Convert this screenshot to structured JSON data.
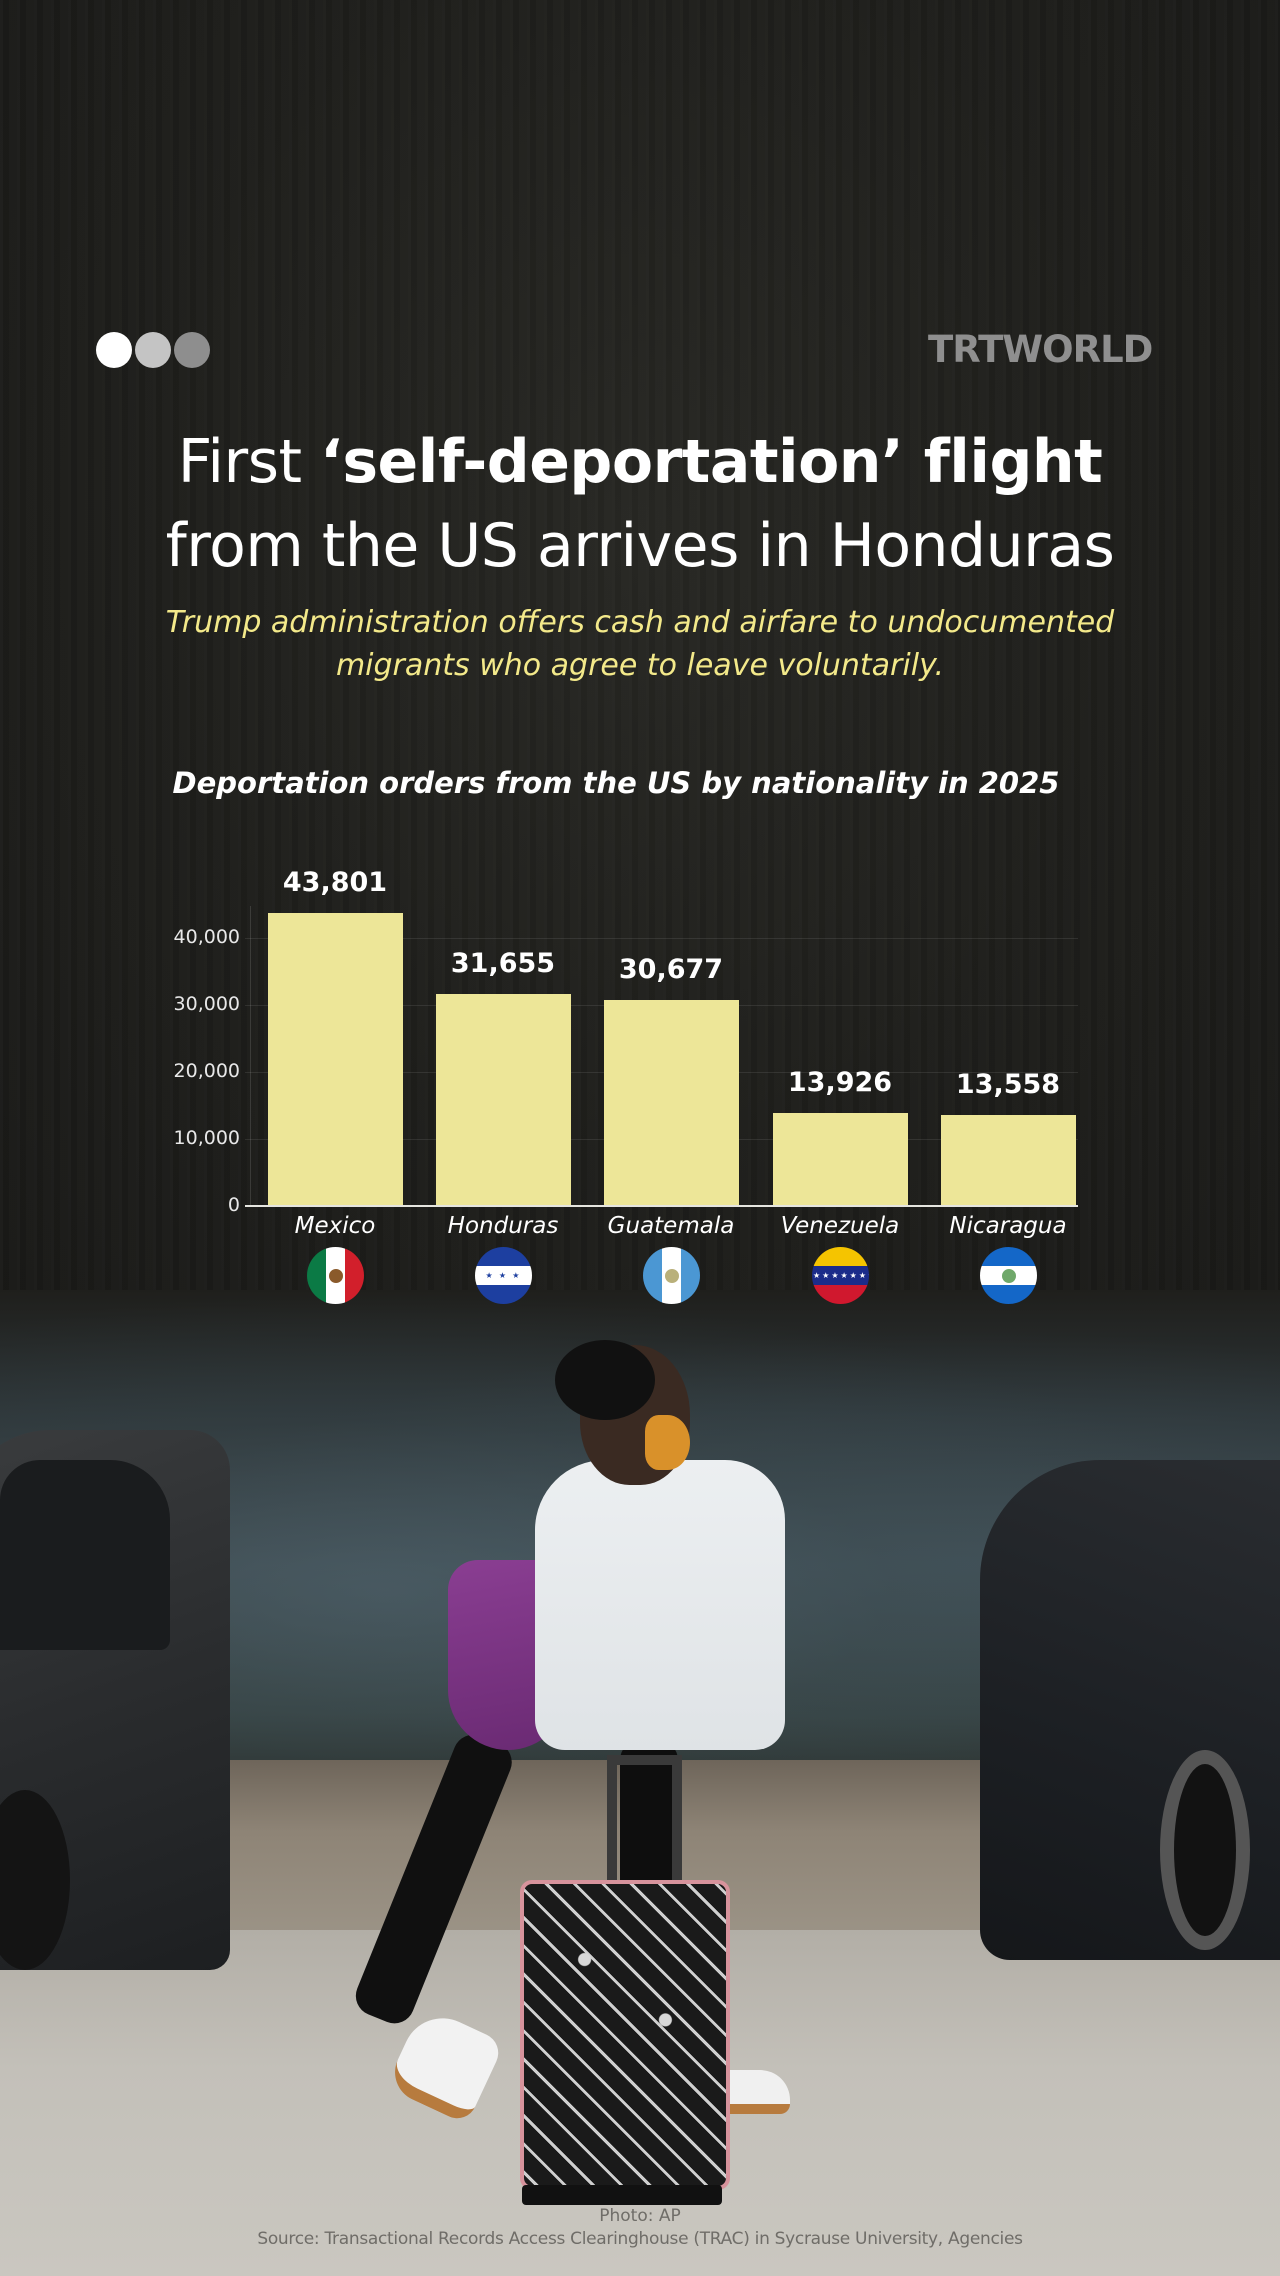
{
  "brand": {
    "logo_text": "TRTWORLD",
    "dots": [
      {
        "color": "#ffffff"
      },
      {
        "color": "#c4c4c4"
      },
      {
        "color": "#8e8e8e"
      }
    ]
  },
  "header": {
    "title_line1_regular": "First ",
    "title_line1_bold": "‘self-deportation’ flight",
    "title_line2": "from the US arrives in Honduras",
    "subtitle_line1": "Trump administration offers cash and airfare to undocumented",
    "subtitle_line2": "migrants who agree to leave voluntarily."
  },
  "colors": {
    "bar": "#ede698",
    "subtitle": "#f3e98a",
    "background": "#1b1b18"
  },
  "chart_data": {
    "type": "bar",
    "title": "Deportation orders from the US by nationality in 2025",
    "categories": [
      "Mexico",
      "Honduras",
      "Guatemala",
      "Venezuela",
      "Nicaragua"
    ],
    "values": [
      43801,
      31655,
      30677,
      13926,
      13558
    ],
    "value_labels": [
      "43,801",
      "31,655",
      "30,677",
      "13,926",
      "13,558"
    ],
    "xlabel": "",
    "ylabel": "",
    "ylim": [
      0,
      45000
    ],
    "yticks": [
      0,
      10000,
      20000,
      30000,
      40000
    ],
    "ytick_labels": [
      "0",
      "10,000",
      "20,000",
      "30,000",
      "40,000"
    ],
    "grid": true,
    "legend": "none",
    "category_icons": [
      "mexico-flag",
      "honduras-flag",
      "guatemala-flag",
      "venezuela-flag",
      "nicaragua-flag"
    ]
  },
  "footer": {
    "photo_credit": "Photo: AP",
    "source": "Source: Transactional Records Access Clearinghouse (TRAC) in Sycrause University, Agencies"
  }
}
